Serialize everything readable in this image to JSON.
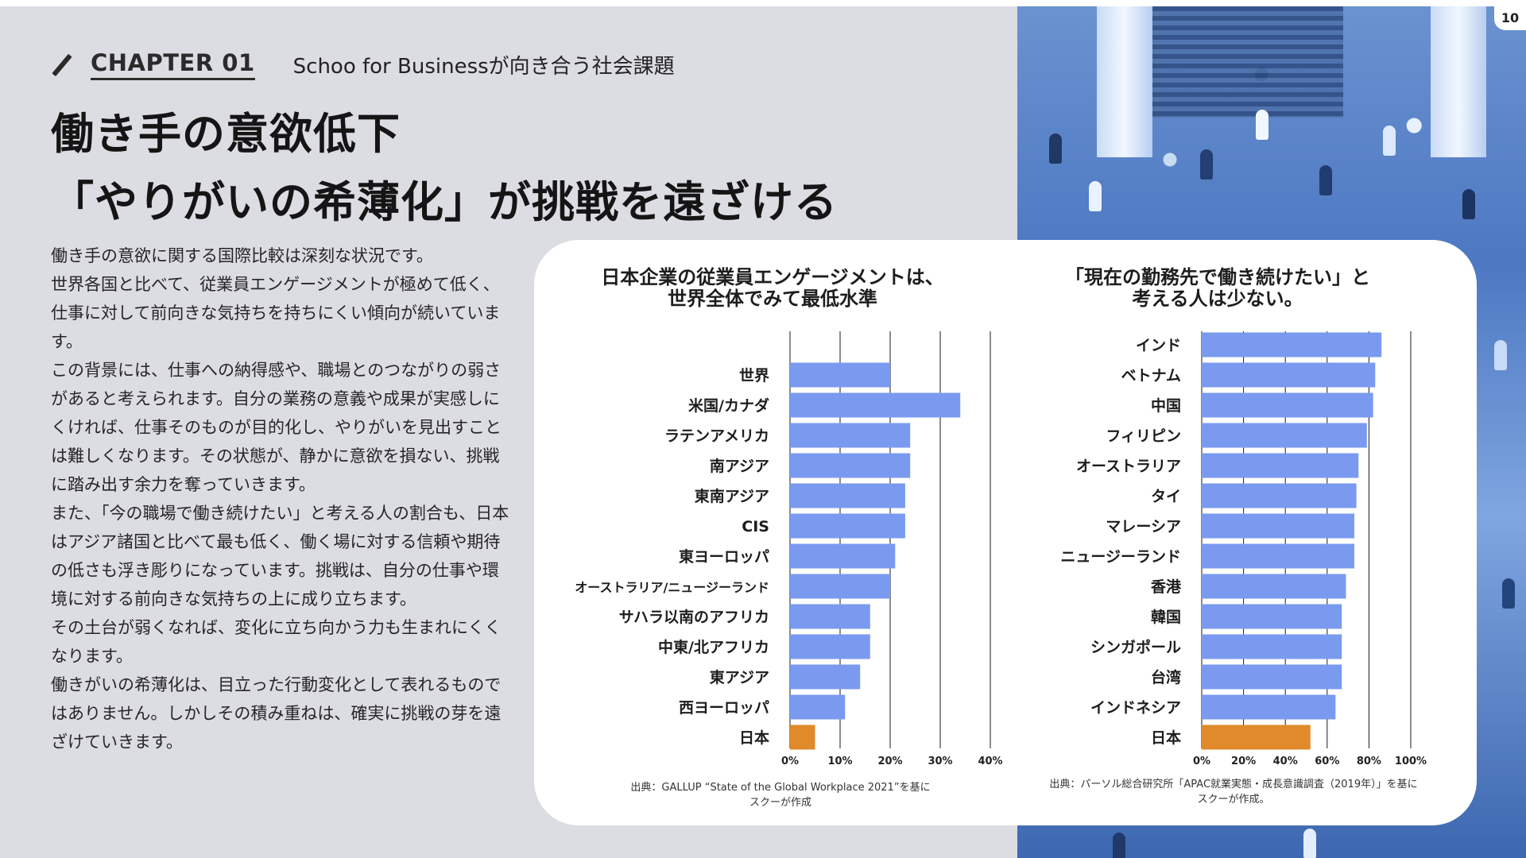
{
  "slide": {
    "page_number": "10",
    "chapter_label": "CHAPTER 01",
    "chapter_subtitle": "Schoo for Businessが向き合う社会課題",
    "title_line1": "働き手の意欲低下",
    "title_line2": "「やりがいの希薄化」が挑戦を遠ざける",
    "body_paragraphs": [
      "働き手の意欲に関する国際比較は深刻な状況です。",
      "世界各国と比べて、従業員エンゲージメントが極めて低く、仕事に対して前向きな気持ちを持ちにくい傾向が続いています。",
      "この背景には、仕事への納得感や、職場とのつながりの弱さがあると考えられます。自分の業務の意義や成果が実感しにくければ、仕事そのものが目的化し、やりがいを見出すことは難しくなります。その状態が、静かに意欲を損ない、挑戦に踏み出す余力を奪っていきます。",
      "また、「今の職場で働き続けたい」と考える人の割合も、日本はアジア諸国と比べて最も低く、働く場に対する信頼や期待の低さも浮き彫りになっています。挑戦は、自分の仕事や環境に対する前向きな気持ちの上に成り立ちます。",
      " その土台が弱くなれば、変化に立ち向かう力も生まれにくくなります。",
      "働きがいの希薄化は、目立った行動変化として表れるものではありません。しかしその積み重ねは、確実に挑戦の芽を遠ざけていきます。"
    ],
    "colors": {
      "bar": "#7a9af0",
      "highlight": "#e08a2c",
      "grid": "#1a1a1a"
    }
  },
  "chart_data": [
    {
      "type": "bar",
      "orientation": "horizontal",
      "title_line1": "日本企業の従業員エンゲージメントは、",
      "title_line2": "世界全体でみて最低水準",
      "categories": [
        "世界",
        "米国/カナダ",
        "ラテンアメリカ",
        "南アジア",
        "東南アジア",
        "CIS",
        "東ヨーロッパ",
        "オーストラリア/ニュージーランド",
        "サハラ以南のアフリカ",
        "中東/北アフリカ",
        "東アジア",
        "西ヨーロッパ",
        "日本"
      ],
      "values": [
        20,
        34,
        24,
        24,
        23,
        23,
        21,
        20,
        16,
        16,
        14,
        11,
        5
      ],
      "highlight_category": "日本",
      "xlim": [
        0,
        40
      ],
      "xticks": [
        "0%",
        "10%",
        "20%",
        "30%",
        "40%"
      ],
      "grid": true,
      "source_line1": "出典：GALLUP “State of the Global Workplace 2021”を基に",
      "source_line2": "スクーが作成"
    },
    {
      "type": "bar",
      "orientation": "horizontal",
      "title_line1": "「現在の勤務先で働き続けたい」と",
      "title_line2": "考える人は少ない。",
      "categories": [
        "インド",
        "ベトナム",
        "中国",
        "フィリピン",
        "オーストラリア",
        "タイ",
        "マレーシア",
        "ニュージーランド",
        "香港",
        "韓国",
        "シンガポール",
        "台湾",
        "インドネシア",
        "日本"
      ],
      "values": [
        86,
        83,
        82,
        79,
        75,
        74,
        73,
        73,
        69,
        67,
        67,
        67,
        64,
        52
      ],
      "highlight_category": "日本",
      "xlim": [
        0,
        100
      ],
      "xticks": [
        "0%",
        "20%",
        "40%",
        "60%",
        "80%",
        "100%"
      ],
      "grid": true,
      "source_line1": "出典：パーソル総合研究所「APAC就業実態・成長意識調査（2019年）」を基に",
      "source_line2": "スクーが作成。"
    }
  ]
}
